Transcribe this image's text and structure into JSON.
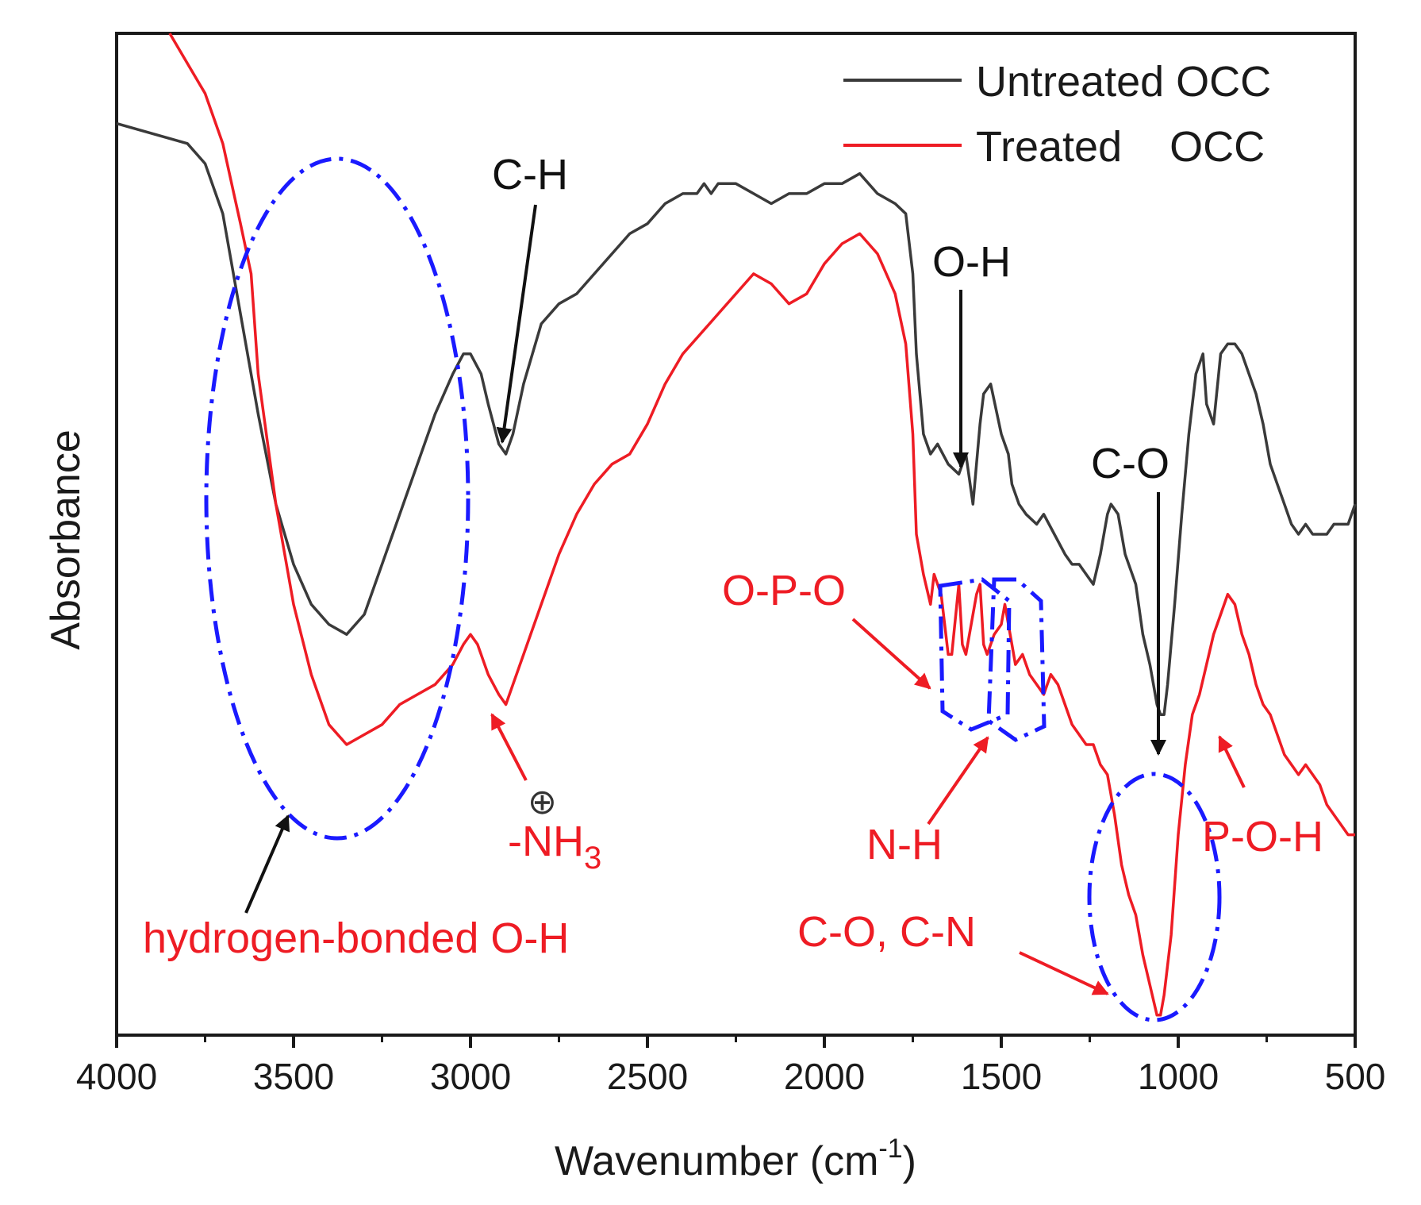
{
  "colors": {
    "untreated": "#3a3a3a",
    "treated": "#ee1c24",
    "ellipse": "#1a1aff",
    "axis": "#1a1a1a",
    "black_annotation": "#111111",
    "red_annotation": "#ee1c24"
  },
  "chart_data": {
    "type": "line",
    "title": "",
    "xlabel": "Wavenumber (cm",
    "xlabel_sup": "-1",
    "xlabel_close": ")",
    "ylabel": "Absorbance",
    "xlim": [
      4000,
      500
    ],
    "ylim": [
      0,
      100
    ],
    "x_reversed": true,
    "x_ticks": [
      4000,
      3500,
      3000,
      2500,
      2000,
      1500,
      1000,
      500
    ],
    "y_ticks": [],
    "grid": false,
    "legend": {
      "position": "top-right",
      "entries": [
        {
          "name": "Untreated OCC",
          "color": "#3a3a3a"
        },
        {
          "name": "Treated    OCC",
          "color": "#ee1c24"
        }
      ]
    },
    "series": [
      {
        "name": "Untreated OCC",
        "color": "#3a3a3a",
        "points": [
          [
            4000,
            91
          ],
          [
            3900,
            90
          ],
          [
            3800,
            89
          ],
          [
            3750,
            87
          ],
          [
            3700,
            82
          ],
          [
            3650,
            72
          ],
          [
            3600,
            62
          ],
          [
            3550,
            53
          ],
          [
            3500,
            47
          ],
          [
            3450,
            43
          ],
          [
            3400,
            41
          ],
          [
            3350,
            40
          ],
          [
            3300,
            42
          ],
          [
            3250,
            47
          ],
          [
            3200,
            52
          ],
          [
            3150,
            57
          ],
          [
            3100,
            62
          ],
          [
            3050,
            66
          ],
          [
            3020,
            68
          ],
          [
            3000,
            68
          ],
          [
            2970,
            66
          ],
          [
            2950,
            63
          ],
          [
            2920,
            59
          ],
          [
            2900,
            58
          ],
          [
            2880,
            60
          ],
          [
            2850,
            65
          ],
          [
            2800,
            71
          ],
          [
            2750,
            73
          ],
          [
            2700,
            74
          ],
          [
            2650,
            76
          ],
          [
            2600,
            78
          ],
          [
            2550,
            80
          ],
          [
            2500,
            81
          ],
          [
            2450,
            83
          ],
          [
            2400,
            84
          ],
          [
            2360,
            84
          ],
          [
            2340,
            85
          ],
          [
            2320,
            84
          ],
          [
            2300,
            85
          ],
          [
            2250,
            85
          ],
          [
            2200,
            84
          ],
          [
            2150,
            83
          ],
          [
            2100,
            84
          ],
          [
            2050,
            84
          ],
          [
            2000,
            85
          ],
          [
            1950,
            85
          ],
          [
            1900,
            86
          ],
          [
            1850,
            84
          ],
          [
            1800,
            83
          ],
          [
            1770,
            82
          ],
          [
            1750,
            76
          ],
          [
            1740,
            68
          ],
          [
            1720,
            60
          ],
          [
            1700,
            58
          ],
          [
            1680,
            59
          ],
          [
            1650,
            57
          ],
          [
            1620,
            56
          ],
          [
            1600,
            58
          ],
          [
            1580,
            53
          ],
          [
            1560,
            61
          ],
          [
            1550,
            64
          ],
          [
            1530,
            65
          ],
          [
            1500,
            60
          ],
          [
            1480,
            58
          ],
          [
            1470,
            55
          ],
          [
            1450,
            53
          ],
          [
            1430,
            52
          ],
          [
            1400,
            51
          ],
          [
            1380,
            52
          ],
          [
            1350,
            50
          ],
          [
            1320,
            48
          ],
          [
            1300,
            47
          ],
          [
            1280,
            47
          ],
          [
            1260,
            46
          ],
          [
            1240,
            45
          ],
          [
            1220,
            48
          ],
          [
            1200,
            52
          ],
          [
            1190,
            53
          ],
          [
            1170,
            52
          ],
          [
            1150,
            48
          ],
          [
            1120,
            45
          ],
          [
            1100,
            40
          ],
          [
            1080,
            37
          ],
          [
            1070,
            35
          ],
          [
            1060,
            33
          ],
          [
            1050,
            32
          ],
          [
            1040,
            32
          ],
          [
            1030,
            35
          ],
          [
            1010,
            43
          ],
          [
            990,
            52
          ],
          [
            970,
            60
          ],
          [
            950,
            66
          ],
          [
            930,
            68
          ],
          [
            920,
            63
          ],
          [
            900,
            61
          ],
          [
            880,
            68
          ],
          [
            860,
            69
          ],
          [
            840,
            69
          ],
          [
            820,
            68
          ],
          [
            800,
            66
          ],
          [
            780,
            64
          ],
          [
            760,
            61
          ],
          [
            740,
            57
          ],
          [
            720,
            55
          ],
          [
            700,
            53
          ],
          [
            680,
            51
          ],
          [
            660,
            50
          ],
          [
            640,
            51
          ],
          [
            620,
            50
          ],
          [
            600,
            50
          ],
          [
            580,
            50
          ],
          [
            560,
            51
          ],
          [
            540,
            51
          ],
          [
            520,
            51
          ],
          [
            500,
            53
          ]
        ]
      },
      {
        "name": "Treated OCC",
        "color": "#ee1c24",
        "points": [
          [
            3850,
            100
          ],
          [
            3800,
            97
          ],
          [
            3750,
            94
          ],
          [
            3700,
            89
          ],
          [
            3650,
            81
          ],
          [
            3620,
            76
          ],
          [
            3600,
            66
          ],
          [
            3550,
            53
          ],
          [
            3500,
            43
          ],
          [
            3450,
            36
          ],
          [
            3400,
            31
          ],
          [
            3350,
            29
          ],
          [
            3300,
            30
          ],
          [
            3250,
            31
          ],
          [
            3200,
            33
          ],
          [
            3150,
            34
          ],
          [
            3100,
            35
          ],
          [
            3050,
            37
          ],
          [
            3020,
            39
          ],
          [
            3000,
            40
          ],
          [
            2980,
            39
          ],
          [
            2950,
            36
          ],
          [
            2920,
            34
          ],
          [
            2900,
            33
          ],
          [
            2880,
            35
          ],
          [
            2850,
            38
          ],
          [
            2800,
            43
          ],
          [
            2750,
            48
          ],
          [
            2700,
            52
          ],
          [
            2650,
            55
          ],
          [
            2600,
            57
          ],
          [
            2550,
            58
          ],
          [
            2500,
            61
          ],
          [
            2450,
            65
          ],
          [
            2400,
            68
          ],
          [
            2350,
            70
          ],
          [
            2300,
            72
          ],
          [
            2250,
            74
          ],
          [
            2200,
            76
          ],
          [
            2150,
            75
          ],
          [
            2100,
            73
          ],
          [
            2050,
            74
          ],
          [
            2000,
            77
          ],
          [
            1950,
            79
          ],
          [
            1900,
            80
          ],
          [
            1850,
            78
          ],
          [
            1800,
            74
          ],
          [
            1770,
            69
          ],
          [
            1750,
            60
          ],
          [
            1740,
            50
          ],
          [
            1720,
            46
          ],
          [
            1700,
            43
          ],
          [
            1690,
            46
          ],
          [
            1670,
            44
          ],
          [
            1650,
            38
          ],
          [
            1640,
            38
          ],
          [
            1620,
            45
          ],
          [
            1610,
            39
          ],
          [
            1600,
            38
          ],
          [
            1580,
            42
          ],
          [
            1570,
            44
          ],
          [
            1560,
            45
          ],
          [
            1550,
            39
          ],
          [
            1540,
            38
          ],
          [
            1520,
            40
          ],
          [
            1500,
            41
          ],
          [
            1490,
            43
          ],
          [
            1470,
            39
          ],
          [
            1460,
            37
          ],
          [
            1440,
            38
          ],
          [
            1420,
            36
          ],
          [
            1400,
            35
          ],
          [
            1380,
            34
          ],
          [
            1360,
            36
          ],
          [
            1340,
            35
          ],
          [
            1320,
            33
          ],
          [
            1300,
            31
          ],
          [
            1280,
            30
          ],
          [
            1260,
            29
          ],
          [
            1240,
            29
          ],
          [
            1220,
            27
          ],
          [
            1200,
            26
          ],
          [
            1180,
            22
          ],
          [
            1160,
            17
          ],
          [
            1140,
            14
          ],
          [
            1120,
            12
          ],
          [
            1100,
            8
          ],
          [
            1080,
            5
          ],
          [
            1060,
            2
          ],
          [
            1050,
            2
          ],
          [
            1040,
            4
          ],
          [
            1020,
            10
          ],
          [
            1000,
            20
          ],
          [
            980,
            27
          ],
          [
            960,
            32
          ],
          [
            940,
            34
          ],
          [
            920,
            37
          ],
          [
            900,
            40
          ],
          [
            880,
            42
          ],
          [
            860,
            44
          ],
          [
            840,
            43
          ],
          [
            820,
            40
          ],
          [
            800,
            38
          ],
          [
            780,
            35
          ],
          [
            760,
            33
          ],
          [
            740,
            32
          ],
          [
            720,
            30
          ],
          [
            700,
            28
          ],
          [
            680,
            27
          ],
          [
            660,
            26
          ],
          [
            640,
            27
          ],
          [
            620,
            26
          ],
          [
            600,
            25
          ],
          [
            580,
            23
          ],
          [
            560,
            22
          ],
          [
            540,
            21
          ],
          [
            520,
            20
          ],
          [
            500,
            20
          ]
        ]
      }
    ],
    "annotations": {
      "ch": "C-H",
      "oh_top": "O-H",
      "co_top": "C-O",
      "opo": "O-P-O",
      "nh3_circle": "⊕",
      "nh3_prefix": "-NH",
      "nh3_sub": "3",
      "nh": "N-H",
      "poh": "P-O-H",
      "co_cn": "C-O, C-N",
      "hbond": "hydrogen-bonded O-H"
    }
  }
}
